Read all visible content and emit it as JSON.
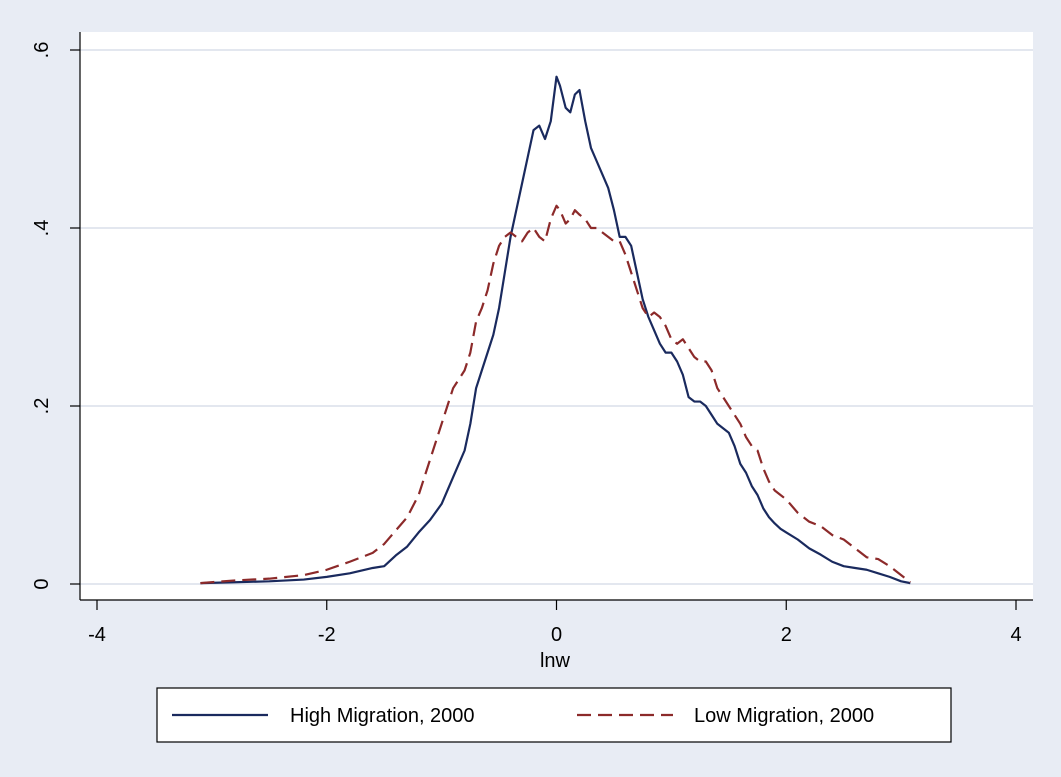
{
  "chart_data": {
    "type": "line",
    "title": "",
    "xlabel": "lnw",
    "ylabel": "",
    "xlim": [
      -4,
      4
    ],
    "ylim": [
      0,
      0.6
    ],
    "x_ticks": [
      -4,
      -2,
      0,
      2,
      4
    ],
    "x_tick_labels": [
      "-4",
      "-2",
      "0",
      "2",
      "4"
    ],
    "y_ticks": [
      0,
      0.2,
      0.4,
      0.6
    ],
    "y_tick_labels": [
      "0",
      ".2",
      ".4",
      ".6"
    ],
    "grid": "horizontal",
    "legend_position": "bottom",
    "series": [
      {
        "name": "High Migration, 2000",
        "color": "#1a2a5e",
        "style": "solid",
        "x": [
          -3.1,
          -2.8,
          -2.5,
          -2.2,
          -2.0,
          -1.8,
          -1.6,
          -1.5,
          -1.4,
          -1.3,
          -1.2,
          -1.1,
          -1.0,
          -0.9,
          -0.8,
          -0.75,
          -0.7,
          -0.65,
          -0.6,
          -0.55,
          -0.5,
          -0.45,
          -0.4,
          -0.35,
          -0.3,
          -0.25,
          -0.2,
          -0.15,
          -0.1,
          -0.05,
          0.0,
          0.03,
          0.08,
          0.12,
          0.16,
          0.2,
          0.25,
          0.3,
          0.35,
          0.4,
          0.45,
          0.5,
          0.55,
          0.6,
          0.65,
          0.7,
          0.75,
          0.8,
          0.85,
          0.9,
          0.95,
          1.0,
          1.05,
          1.1,
          1.15,
          1.2,
          1.25,
          1.3,
          1.35,
          1.4,
          1.45,
          1.5,
          1.55,
          1.6,
          1.65,
          1.7,
          1.75,
          1.8,
          1.85,
          1.9,
          1.95,
          2.0,
          2.1,
          2.2,
          2.3,
          2.4,
          2.5,
          2.6,
          2.7,
          2.8,
          2.9,
          3.0,
          3.08
        ],
        "values": [
          0.001,
          0.002,
          0.003,
          0.005,
          0.008,
          0.012,
          0.018,
          0.02,
          0.032,
          0.042,
          0.058,
          0.072,
          0.09,
          0.12,
          0.15,
          0.18,
          0.22,
          0.24,
          0.26,
          0.28,
          0.31,
          0.35,
          0.39,
          0.42,
          0.45,
          0.48,
          0.51,
          0.515,
          0.5,
          0.52,
          0.57,
          0.56,
          0.535,
          0.53,
          0.55,
          0.555,
          0.52,
          0.49,
          0.475,
          0.46,
          0.445,
          0.42,
          0.39,
          0.39,
          0.38,
          0.35,
          0.32,
          0.3,
          0.285,
          0.27,
          0.26,
          0.26,
          0.25,
          0.235,
          0.21,
          0.205,
          0.205,
          0.2,
          0.19,
          0.18,
          0.175,
          0.17,
          0.155,
          0.135,
          0.125,
          0.11,
          0.1,
          0.085,
          0.075,
          0.068,
          0.062,
          0.058,
          0.05,
          0.04,
          0.033,
          0.025,
          0.02,
          0.018,
          0.016,
          0.012,
          0.008,
          0.003,
          0.001
        ]
      },
      {
        "name": "Low Migration, 2000",
        "color": "#8c2a2a",
        "style": "dashed",
        "x": [
          -3.1,
          -2.8,
          -2.5,
          -2.2,
          -2.0,
          -1.8,
          -1.6,
          -1.5,
          -1.4,
          -1.3,
          -1.2,
          -1.1,
          -1.0,
          -0.9,
          -0.8,
          -0.75,
          -0.7,
          -0.65,
          -0.6,
          -0.55,
          -0.5,
          -0.45,
          -0.4,
          -0.35,
          -0.3,
          -0.25,
          -0.2,
          -0.15,
          -0.1,
          -0.05,
          0.0,
          0.03,
          0.08,
          0.12,
          0.16,
          0.2,
          0.25,
          0.3,
          0.35,
          0.4,
          0.45,
          0.5,
          0.55,
          0.6,
          0.65,
          0.7,
          0.75,
          0.8,
          0.85,
          0.9,
          0.95,
          1.0,
          1.05,
          1.1,
          1.15,
          1.2,
          1.25,
          1.3,
          1.35,
          1.4,
          1.45,
          1.5,
          1.55,
          1.6,
          1.65,
          1.7,
          1.75,
          1.8,
          1.85,
          1.9,
          1.95,
          2.0,
          2.1,
          2.2,
          2.3,
          2.4,
          2.5,
          2.6,
          2.7,
          2.8,
          2.9,
          3.0,
          3.08
        ],
        "values": [
          0.001,
          0.004,
          0.006,
          0.01,
          0.016,
          0.025,
          0.035,
          0.045,
          0.06,
          0.075,
          0.1,
          0.14,
          0.18,
          0.22,
          0.24,
          0.26,
          0.295,
          0.31,
          0.33,
          0.36,
          0.38,
          0.39,
          0.395,
          0.39,
          0.385,
          0.395,
          0.4,
          0.39,
          0.385,
          0.41,
          0.425,
          0.42,
          0.405,
          0.41,
          0.42,
          0.415,
          0.41,
          0.4,
          0.4,
          0.395,
          0.39,
          0.385,
          0.385,
          0.37,
          0.35,
          0.33,
          0.31,
          0.3,
          0.305,
          0.3,
          0.29,
          0.275,
          0.27,
          0.275,
          0.265,
          0.255,
          0.25,
          0.25,
          0.24,
          0.22,
          0.21,
          0.2,
          0.19,
          0.18,
          0.165,
          0.155,
          0.15,
          0.13,
          0.115,
          0.105,
          0.1,
          0.095,
          0.08,
          0.07,
          0.065,
          0.055,
          0.05,
          0.04,
          0.03,
          0.028,
          0.02,
          0.01,
          0.002
        ]
      }
    ]
  }
}
